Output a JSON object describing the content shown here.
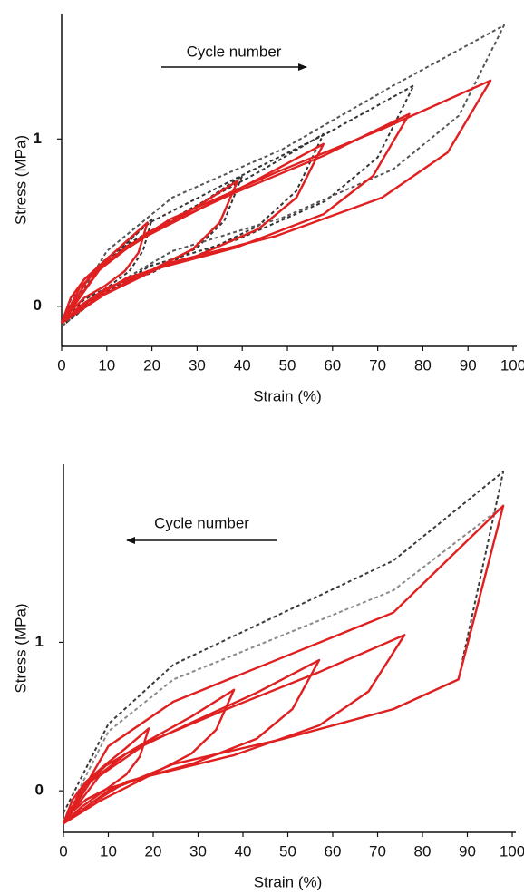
{
  "chart_data": [
    {
      "type": "line",
      "xlabel": "Strain (%)",
      "ylabel": "Stress (MPa)",
      "annotation": "Cycle number",
      "arrow": "right",
      "xlim": [
        0,
        100
      ],
      "xticks": [
        0,
        10,
        20,
        30,
        40,
        50,
        60,
        70,
        80,
        90,
        100
      ],
      "ylim": [
        -0.24,
        1.75
      ],
      "yticks": [
        0,
        1
      ],
      "series": [
        {
          "color": "#333333",
          "dashed": true,
          "x": [
            0,
            2,
            5,
            10,
            15,
            20,
            18,
            15,
            10,
            5,
            2,
            0
          ],
          "values": [
            -0.12,
            0.04,
            0.16,
            0.28,
            0.39,
            0.52,
            0.33,
            0.21,
            0.11,
            0.04,
            -0.04,
            -0.12
          ]
        },
        {
          "color": "#333333",
          "dashed": true,
          "x": [
            0,
            4,
            10,
            20,
            30,
            40,
            36,
            30,
            20,
            10,
            4,
            0
          ],
          "values": [
            -0.12,
            0.11,
            0.27,
            0.44,
            0.6,
            0.78,
            0.51,
            0.35,
            0.2,
            0.11,
            -0.01,
            -0.12
          ]
        },
        {
          "color": "#333333",
          "dashed": true,
          "x": [
            0,
            6,
            14.5,
            29,
            43.5,
            58,
            52,
            43.5,
            29,
            14.5,
            6,
            0
          ],
          "values": [
            -0.12,
            0.17,
            0.37,
            0.59,
            0.8,
            1.03,
            0.69,
            0.48,
            0.29,
            0.17,
            0.02,
            -0.12
          ]
        },
        {
          "color": "#333333",
          "dashed": true,
          "x": [
            0,
            8,
            19.5,
            39,
            58.5,
            78,
            70,
            58.5,
            39,
            19.5,
            8,
            0
          ],
          "values": [
            -0.12,
            0.24,
            0.5,
            0.77,
            1.03,
            1.32,
            0.89,
            0.63,
            0.4,
            0.24,
            0.05,
            -0.12
          ]
        },
        {
          "color": "#555555",
          "dashed": true,
          "x": [
            0,
            10,
            24.5,
            49,
            73.5,
            98,
            88,
            73.5,
            49,
            24.5,
            10,
            0
          ],
          "values": [
            -0.12,
            0.33,
            0.65,
            0.94,
            1.32,
            1.68,
            1.14,
            0.82,
            0.53,
            0.33,
            0.1,
            -0.12
          ]
        },
        {
          "color": "#e02020",
          "dashed": false,
          "x": [
            0,
            2,
            5,
            9.5,
            14,
            19,
            17,
            14,
            9.5,
            5,
            2,
            0
          ],
          "values": [
            -0.1,
            0.05,
            0.16,
            0.27,
            0.38,
            0.5,
            0.32,
            0.21,
            0.12,
            0.05,
            -0.03,
            -0.1
          ]
        },
        {
          "color": "#e02020",
          "dashed": false,
          "x": [
            0,
            4,
            10,
            19.5,
            29,
            39,
            35,
            29,
            19.5,
            10,
            4,
            0
          ],
          "values": [
            -0.1,
            0.11,
            0.27,
            0.43,
            0.58,
            0.75,
            0.5,
            0.34,
            0.21,
            0.11,
            0.0,
            -0.1
          ]
        },
        {
          "color": "#e02020",
          "dashed": false,
          "x": [
            0,
            6,
            14.5,
            29,
            43.5,
            58,
            52,
            43.5,
            29,
            14.5,
            6,
            0
          ],
          "values": [
            -0.1,
            0.17,
            0.36,
            0.56,
            0.76,
            0.97,
            0.65,
            0.46,
            0.29,
            0.17,
            0.03,
            -0.1
          ]
        },
        {
          "color": "#e02020",
          "dashed": false,
          "x": [
            0,
            8,
            19,
            38.5,
            58,
            77,
            69,
            58,
            38.5,
            19,
            8,
            0
          ],
          "values": [
            -0.1,
            0.21,
            0.44,
            0.68,
            0.9,
            1.15,
            0.78,
            0.55,
            0.35,
            0.21,
            0.05,
            -0.1
          ]
        },
        {
          "color": "#e02020",
          "dashed": false,
          "x": [
            0,
            9.5,
            24,
            47.5,
            71,
            95,
            85.5,
            71,
            47.5,
            24,
            9.5,
            0
          ],
          "values": [
            -0.1,
            0.26,
            0.52,
            0.8,
            1.06,
            1.35,
            0.92,
            0.65,
            0.42,
            0.26,
            0.07,
            -0.1
          ]
        }
      ]
    },
    {
      "type": "line",
      "xlabel": "Strain (%)",
      "ylabel": "Stress (MPa)",
      "annotation": "Cycle number",
      "arrow": "left",
      "xlim": [
        0,
        100
      ],
      "xticks": [
        0,
        10,
        20,
        30,
        40,
        50,
        60,
        70,
        80,
        90,
        100
      ],
      "ylim": [
        -0.28,
        2.2
      ],
      "yticks": [
        0,
        1
      ],
      "series": [
        {
          "color": "#3a3a3a",
          "dashed": true,
          "x": [
            0,
            10,
            24.5,
            49,
            73.5,
            98,
            88,
            73.5,
            49,
            24.5,
            10,
            0
          ],
          "values": [
            -0.15,
            0.45,
            0.85,
            1.2,
            1.55,
            2.15,
            0.75,
            0.55,
            0.35,
            0.18,
            0.0,
            -0.22
          ]
        },
        {
          "color": "#8a8a8a",
          "dashed": true,
          "x": [
            0,
            10,
            24.5,
            49,
            73.5,
            98,
            88,
            73.5,
            49,
            24.5,
            10,
            0
          ],
          "values": [
            -0.2,
            0.4,
            0.75,
            1.05,
            1.35,
            1.92,
            0.75,
            0.55,
            0.35,
            0.18,
            0.0,
            -0.22
          ]
        },
        {
          "color": "#e02020",
          "dashed": false,
          "x": [
            0,
            2,
            5,
            9.5,
            14,
            19,
            17,
            14,
            9.5,
            5,
            2,
            0
          ],
          "values": [
            -0.22,
            -0.06,
            0.06,
            0.18,
            0.29,
            0.42,
            0.23,
            0.11,
            0.01,
            -0.06,
            -0.14,
            -0.22
          ]
        },
        {
          "color": "#e02020",
          "dashed": false,
          "x": [
            0,
            4,
            9.5,
            19,
            28.5,
            38,
            34,
            28.5,
            19,
            9.5,
            4,
            0
          ],
          "values": [
            -0.22,
            0.01,
            0.17,
            0.34,
            0.5,
            0.68,
            0.41,
            0.25,
            0.1,
            0.01,
            -0.11,
            -0.22
          ]
        },
        {
          "color": "#e02020",
          "dashed": false,
          "x": [
            0,
            6,
            14,
            28.5,
            43,
            57,
            51,
            43,
            28.5,
            14,
            6,
            0
          ],
          "values": [
            -0.22,
            0.06,
            0.25,
            0.46,
            0.66,
            0.88,
            0.55,
            0.35,
            0.18,
            0.06,
            -0.09,
            -0.22
          ]
        },
        {
          "color": "#e02020",
          "dashed": false,
          "x": [
            0,
            8,
            19,
            38,
            57,
            76,
            68,
            57,
            38,
            19,
            8,
            0
          ],
          "values": [
            -0.22,
            0.1,
            0.33,
            0.57,
            0.8,
            1.05,
            0.67,
            0.44,
            0.24,
            0.1,
            -0.07,
            -0.22
          ]
        },
        {
          "color": "#e02020",
          "dashed": false,
          "x": [
            0,
            10,
            24.5,
            49,
            73.5,
            98,
            88,
            73.5,
            49,
            24.5,
            10,
            0
          ],
          "values": [
            -0.22,
            0.3,
            0.6,
            0.9,
            1.2,
            1.92,
            0.75,
            0.55,
            0.35,
            0.18,
            0.0,
            -0.22
          ]
        }
      ]
    }
  ]
}
